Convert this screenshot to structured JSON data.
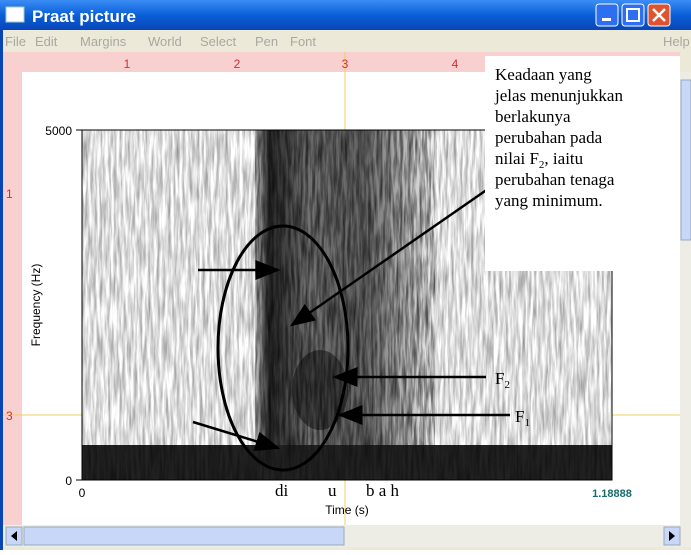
{
  "window": {
    "title": "Praat picture"
  },
  "menu": [
    "File",
    "Edit",
    "Margins",
    "World",
    "Select",
    "Pen",
    "Font",
    "Help"
  ],
  "ruler": {
    "top": [
      "1",
      "2",
      "3",
      "4"
    ],
    "left": [
      "1",
      "3"
    ]
  },
  "plot": {
    "y_axis_label": "Frequency (Hz)",
    "y_ticks": [
      "5000",
      "0"
    ],
    "x_axis_label": "Time (s)",
    "x_ticks": [
      "0",
      "1.18888"
    ],
    "segments": [
      "di",
      "u",
      "b a h"
    ]
  },
  "annotation": {
    "lines": [
      "Keadaan yang",
      "jelas menunjukkan",
      "berlakunya",
      "perubahan pada"
    ],
    "f_line": {
      "text": "nilai F",
      "sub": "2",
      "rest": ", iaitu"
    },
    "lines_after": [
      "perubahan tenaga",
      "yang minimum."
    ]
  },
  "labels": {
    "f2": {
      "text": "F",
      "sub": "2"
    },
    "f1": {
      "text": "F",
      "sub": "1"
    }
  }
}
